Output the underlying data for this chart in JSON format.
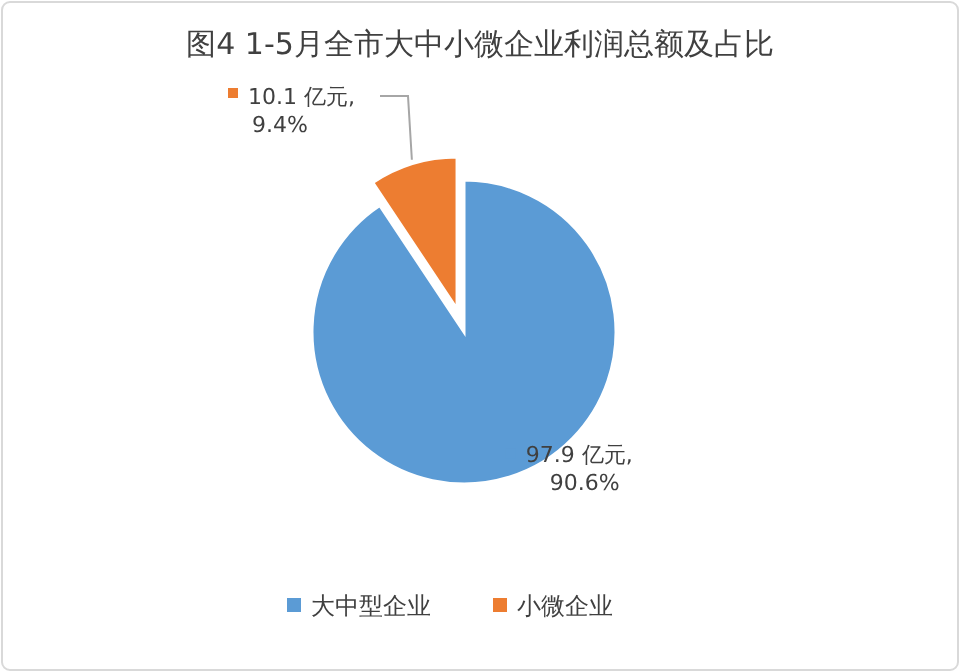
{
  "chart_data": {
    "type": "pie",
    "title": "图4  1-5月全市大中小微企业利润总额及占比",
    "categories": [
      "大中型企业",
      "小微企业"
    ],
    "values": [
      97.9,
      10.1
    ],
    "colors": [
      "#5b9bd5",
      "#ed7d31"
    ],
    "value_labels": [
      "97.9 亿元,\n90.6%",
      "10.1 亿元,\n9.4%"
    ],
    "legend": "bottom"
  }
}
